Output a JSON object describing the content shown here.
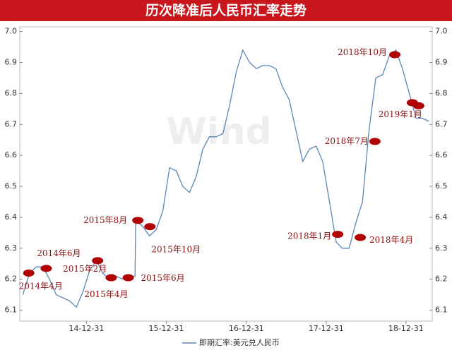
{
  "chart_data": {
    "type": "line",
    "title": "历次降准后人民币汇率走势",
    "watermark": "Wind",
    "x": [
      "2014-03-15",
      "2014-04-15",
      "2014-05-15",
      "2014-06-15",
      "2014-07-15",
      "2014-08-15",
      "2014-09-15",
      "2014-10-15",
      "2014-11-15",
      "2014-12-15",
      "2015-01-15",
      "2015-02-15",
      "2015-03-15",
      "2015-04-15",
      "2015-05-15",
      "2015-06-15",
      "2015-07-15",
      "2015-08-10",
      "2015-08-13",
      "2015-08-15",
      "2015-09-15",
      "2015-10-15",
      "2015-11-15",
      "2015-12-15",
      "2016-01-15",
      "2016-02-15",
      "2016-03-15",
      "2016-04-15",
      "2016-05-15",
      "2016-06-15",
      "2016-07-15",
      "2016-08-15",
      "2016-09-15",
      "2016-10-15",
      "2016-11-15",
      "2016-12-15",
      "2017-01-15",
      "2017-02-15",
      "2017-03-15",
      "2017-04-15",
      "2017-05-15",
      "2017-06-15",
      "2017-07-15",
      "2017-08-15",
      "2017-09-15",
      "2017-10-15",
      "2017-11-15",
      "2017-12-15",
      "2018-01-15",
      "2018-02-15",
      "2018-03-15",
      "2018-04-15",
      "2018-05-15",
      "2018-06-15",
      "2018-07-15",
      "2018-08-15",
      "2018-09-15",
      "2018-10-15",
      "2018-11-15",
      "2018-12-15",
      "2019-01-15",
      "2019-02-15",
      "2019-03-15",
      "2019-04-15"
    ],
    "series": [
      {
        "name": "即期汇率:美元兑人民币",
        "color": "#5b85b5",
        "values": [
          6.15,
          6.22,
          6.24,
          6.24,
          6.2,
          6.15,
          6.14,
          6.13,
          6.11,
          6.16,
          6.23,
          6.26,
          6.22,
          6.2,
          6.21,
          6.2,
          6.21,
          6.21,
          6.39,
          6.39,
          6.37,
          6.34,
          6.36,
          6.42,
          6.56,
          6.55,
          6.5,
          6.48,
          6.53,
          6.62,
          6.66,
          6.66,
          6.67,
          6.76,
          6.87,
          6.94,
          6.9,
          6.88,
          6.89,
          6.89,
          6.88,
          6.82,
          6.78,
          6.68,
          6.58,
          6.62,
          6.63,
          6.58,
          6.45,
          6.32,
          6.3,
          6.3,
          6.38,
          6.45,
          6.68,
          6.85,
          6.86,
          6.92,
          6.94,
          6.88,
          6.8,
          6.72,
          6.72,
          6.71
        ]
      }
    ],
    "xlim": [
      "2014-03-01",
      "2019-04-30"
    ],
    "xticks": [
      {
        "value": "2014-12-31",
        "label": "14-12-31"
      },
      {
        "value": "2015-12-31",
        "label": "15-12-31"
      },
      {
        "value": "2016-12-31",
        "label": "16-12-31"
      },
      {
        "value": "2017-12-31",
        "label": "17-12-31"
      },
      {
        "value": "2018-12-31",
        "label": "18-12-31"
      }
    ],
    "ylim": [
      6.065,
      7.015
    ],
    "yticks": [
      {
        "value": 6.1,
        "label": "6.1"
      },
      {
        "value": 6.2,
        "label": "6.2"
      },
      {
        "value": 6.3,
        "label": "6.3"
      },
      {
        "value": 6.4,
        "label": "6.4"
      },
      {
        "value": 6.5,
        "label": "6.5"
      },
      {
        "value": 6.6,
        "label": "6.6"
      },
      {
        "value": 6.7,
        "label": "6.7"
      },
      {
        "value": 6.8,
        "label": "6.8"
      },
      {
        "value": 6.9,
        "label": "6.9"
      },
      {
        "value": 7.0,
        "label": "7.0"
      }
    ],
    "marker_color": "#b00000",
    "annotations": [
      {
        "label": "2014年4月",
        "points": [
          {
            "x": "2014-04-11",
            "y": 6.22
          }
        ]
      },
      {
        "label": "2014年6月",
        "points": [
          {
            "x": "2014-06-30",
            "y": 6.235
          }
        ]
      },
      {
        "label": "2015年2月",
        "points": [
          {
            "x": "2015-02-20",
            "y": 6.26
          }
        ]
      },
      {
        "label": "2015年4月",
        "points": [
          {
            "x": "2015-04-23",
            "y": 6.205
          }
        ]
      },
      {
        "label": "2015年6月",
        "points": [
          {
            "x": "2015-07-10",
            "y": 6.205
          }
        ]
      },
      {
        "label": "2015年8月",
        "points": [
          {
            "x": "2015-08-23",
            "y": 6.39
          }
        ]
      },
      {
        "label": "2015年10月",
        "points": [
          {
            "x": "2015-10-17",
            "y": 6.37
          }
        ]
      },
      {
        "label": "2018年1月",
        "points": [
          {
            "x": "2018-02-22",
            "y": 6.345
          }
        ]
      },
      {
        "label": "2018年4月",
        "points": [
          {
            "x": "2018-06-05",
            "y": 6.335
          }
        ]
      },
      {
        "label": "2018年7月",
        "points": [
          {
            "x": "2018-08-11",
            "y": 6.645
          }
        ]
      },
      {
        "label": "2018年10月",
        "points": [
          {
            "x": "2018-11-10",
            "y": 6.925
          }
        ]
      },
      {
        "label": "2019年1月",
        "points": [
          {
            "x": "2019-01-29",
            "y": 6.77
          },
          {
            "x": "2019-02-27",
            "y": 6.76
          }
        ]
      }
    ]
  }
}
